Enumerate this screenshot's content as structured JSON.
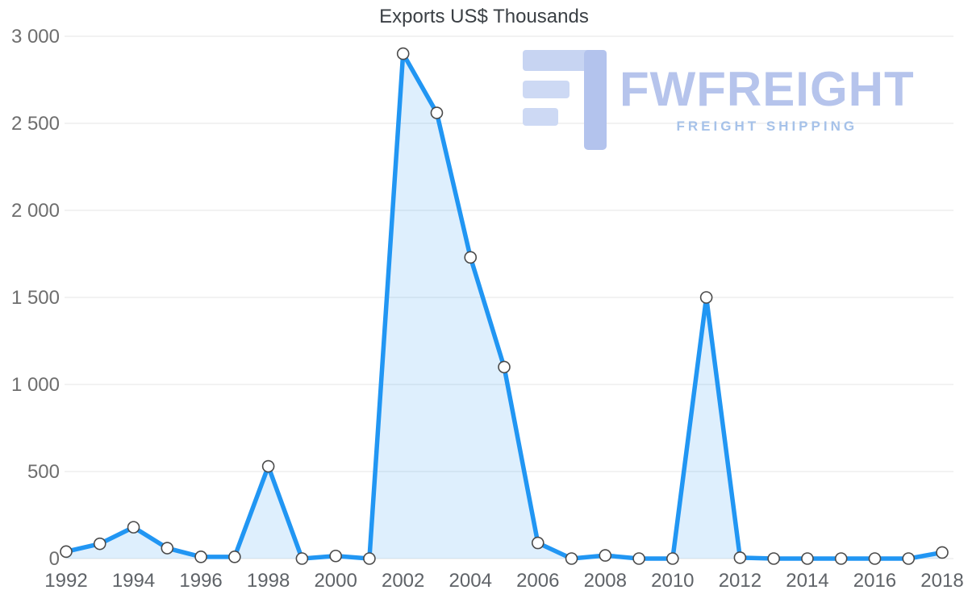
{
  "watermark": {
    "brand": "FWFREIGHT",
    "tagline": "FREIGHT SHIPPING",
    "brand_color": "#b6c4ec",
    "tagline_color": "#a6c2e9"
  },
  "chart_data": {
    "type": "area",
    "title": "Exports US$ Thousands",
    "xlabel": "",
    "ylabel": "US$ Thousands",
    "x": [
      1992,
      1993,
      1994,
      1995,
      1996,
      1997,
      1998,
      1999,
      2000,
      2001,
      2002,
      2003,
      2004,
      2005,
      2006,
      2007,
      2008,
      2009,
      2010,
      2011,
      2012,
      2013,
      2014,
      2015,
      2016,
      2017,
      2018
    ],
    "series": [
      {
        "name": "Exports US$ Thousands",
        "values": [
          40,
          85,
          180,
          60,
          10,
          10,
          530,
          0,
          15,
          0,
          2900,
          2560,
          1730,
          1100,
          90,
          0,
          18,
          0,
          0,
          1500,
          5,
          0,
          0,
          0,
          0,
          0,
          35
        ]
      }
    ],
    "ylim": [
      0,
      3000
    ],
    "xlim": [
      1992,
      2018
    ],
    "y_ticks": [
      0,
      500,
      1000,
      1500,
      2000,
      2500,
      3000
    ],
    "y_tick_labels": [
      "0",
      "500",
      "1 000",
      "1 500",
      "2 000",
      "2 500",
      "3 000"
    ],
    "x_tick_years": [
      1992,
      1994,
      1996,
      1998,
      2000,
      2002,
      2004,
      2006,
      2008,
      2010,
      2012,
      2014,
      2016,
      2018
    ],
    "x_tick_labels": [
      "1992",
      "1994",
      "1996",
      "1998",
      "2000",
      "2002",
      "2004",
      "2006",
      "2008",
      "2010",
      "2012",
      "2014",
      "2016",
      "2018"
    ],
    "grid": "horizontal",
    "legend": "none",
    "marker_shape": "circle",
    "colors": {
      "line": "#2196f3",
      "fill": "rgba(33,150,243,0.15)",
      "marker_fill": "#ffffff",
      "marker_stroke": "#4a4a4a",
      "grid": "#e4e4e4",
      "y_axis_text": "#6e6e6e",
      "x_axis_text": "#5f6368",
      "title_text": "#3a3f44"
    }
  }
}
